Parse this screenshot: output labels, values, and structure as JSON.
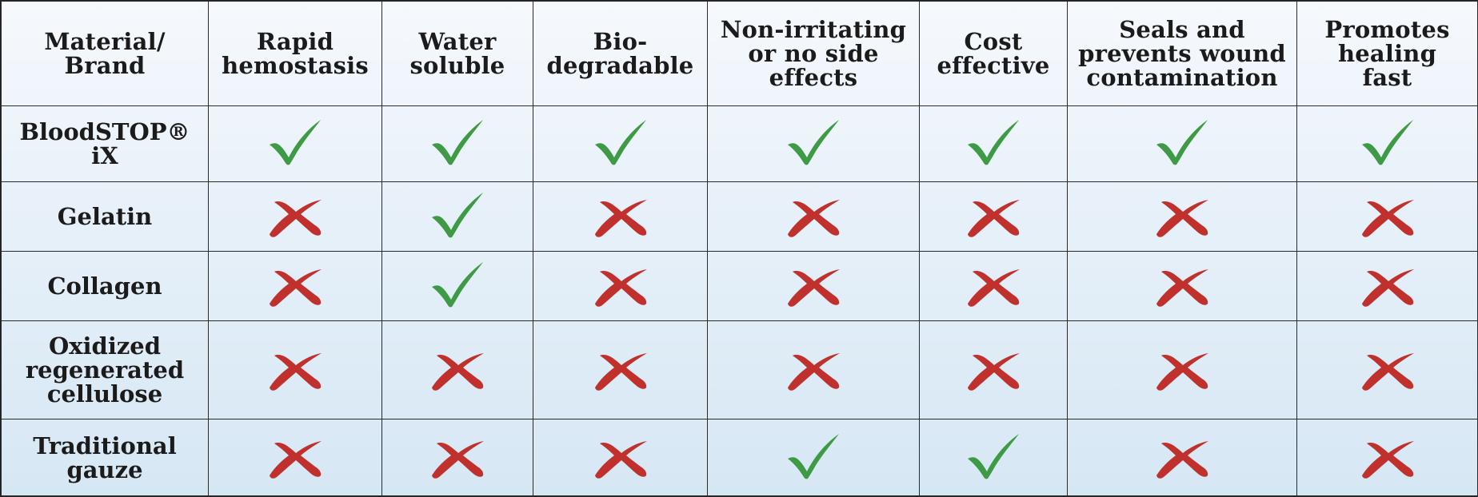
{
  "table": {
    "headers": [
      "Material/\nBrand",
      "Rapid\nhemostasis",
      "Water\nsoluble",
      "Bio-\ndegradable",
      "Non-irritating\nor no side\neffects",
      "Cost\neffective",
      "Seals and\nprevents wound\ncontamination",
      "Promotes\nhealing\nfast"
    ],
    "rows": [
      {
        "material": "BloodSTOP®\niX",
        "marks": [
          "check",
          "check",
          "check",
          "check",
          "check",
          "check",
          "check"
        ]
      },
      {
        "material": "Gelatin",
        "marks": [
          "cross",
          "check",
          "cross",
          "cross",
          "cross",
          "cross",
          "cross"
        ]
      },
      {
        "material": "Collagen",
        "marks": [
          "cross",
          "check",
          "cross",
          "cross",
          "cross",
          "cross",
          "cross"
        ]
      },
      {
        "material": "Oxidized\nregenerated\ncellulose",
        "marks": [
          "cross",
          "cross",
          "cross",
          "cross",
          "cross",
          "cross",
          "cross"
        ]
      },
      {
        "material": "Traditional\ngauze",
        "marks": [
          "cross",
          "cross",
          "cross",
          "check",
          "check",
          "cross",
          "cross"
        ]
      }
    ]
  },
  "colors": {
    "check": "#3e9a45",
    "cross": "#c0312d"
  },
  "icons": {
    "check": "check-icon",
    "cross": "cross-icon"
  }
}
